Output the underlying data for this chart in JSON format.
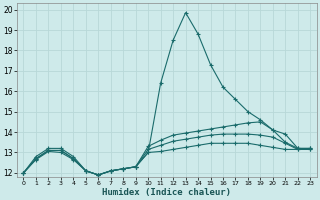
{
  "xlabel": "Humidex (Indice chaleur)",
  "background_color": "#ceeaea",
  "grid_color": "#b8d8d8",
  "line_color": "#1a6b6b",
  "xlim": [
    -0.5,
    23.5
  ],
  "ylim": [
    11.8,
    20.3
  ],
  "yticks": [
    12,
    13,
    14,
    15,
    16,
    17,
    18,
    19,
    20
  ],
  "xticks": [
    0,
    1,
    2,
    3,
    4,
    5,
    6,
    7,
    8,
    9,
    10,
    11,
    12,
    13,
    14,
    15,
    16,
    17,
    18,
    19,
    20,
    21,
    22,
    23
  ],
  "series": {
    "line1_x": [
      0,
      1,
      2,
      3,
      4,
      5,
      6,
      7,
      8,
      9,
      10,
      11,
      12,
      13,
      14,
      15,
      16,
      17,
      18,
      19,
      20,
      21,
      22,
      23
    ],
    "line1_y": [
      12.0,
      12.8,
      13.2,
      13.2,
      12.8,
      12.1,
      11.9,
      12.1,
      12.2,
      12.3,
      13.0,
      16.4,
      18.5,
      19.85,
      18.8,
      17.3,
      16.2,
      15.6,
      15.0,
      14.6,
      14.1,
      13.9,
      13.2,
      13.2
    ],
    "line2_x": [
      0,
      1,
      2,
      3,
      4,
      5,
      6,
      7,
      8,
      9,
      10,
      11,
      12,
      13,
      14,
      15,
      16,
      17,
      18,
      19,
      20,
      21,
      22,
      23
    ],
    "line2_y": [
      12.0,
      12.7,
      13.1,
      13.1,
      12.7,
      12.1,
      11.9,
      12.1,
      12.2,
      12.3,
      13.3,
      13.6,
      13.85,
      13.95,
      14.05,
      14.15,
      14.25,
      14.35,
      14.45,
      14.5,
      14.1,
      13.5,
      13.2,
      13.2
    ],
    "line3_x": [
      0,
      1,
      2,
      3,
      4,
      5,
      6,
      7,
      8,
      9,
      10,
      11,
      12,
      13,
      14,
      15,
      16,
      17,
      18,
      19,
      20,
      21,
      22,
      23
    ],
    "line3_y": [
      12.0,
      12.7,
      13.1,
      13.1,
      12.7,
      12.1,
      11.9,
      12.1,
      12.2,
      12.3,
      13.15,
      13.35,
      13.55,
      13.65,
      13.75,
      13.85,
      13.9,
      13.9,
      13.9,
      13.85,
      13.75,
      13.45,
      13.15,
      13.15
    ],
    "line4_x": [
      0,
      1,
      2,
      3,
      4,
      5,
      6,
      7,
      8,
      9,
      10,
      11,
      12,
      13,
      14,
      15,
      16,
      17,
      18,
      19,
      20,
      21,
      22,
      23
    ],
    "line4_y": [
      12.0,
      12.65,
      13.05,
      13.0,
      12.65,
      12.1,
      11.9,
      12.1,
      12.2,
      12.3,
      13.0,
      13.05,
      13.15,
      13.25,
      13.35,
      13.45,
      13.45,
      13.45,
      13.45,
      13.35,
      13.25,
      13.15,
      13.15,
      13.15
    ]
  }
}
